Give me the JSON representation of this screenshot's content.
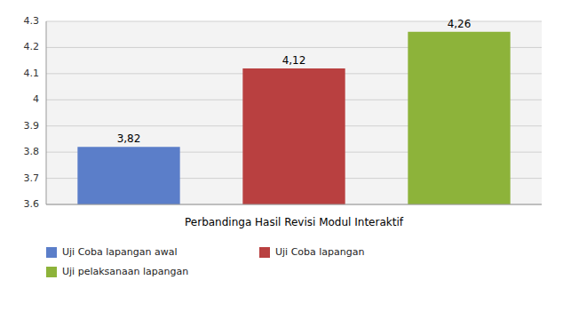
{
  "chart_data": {
    "type": "bar",
    "categories": [
      "Uji Coba lapangan awal",
      "Uji Coba lapangan",
      "Uji pelaksanaan lapangan"
    ],
    "values": [
      3.82,
      4.12,
      4.26
    ],
    "value_labels": [
      "3,82",
      "4,12",
      "4,26"
    ],
    "colors": [
      "#5B7EC9",
      "#B94040",
      "#8DB33A"
    ],
    "xlabel": "Perbandinga Hasil Revisi Modul Interaktif",
    "ylim": [
      3.6,
      4.3
    ],
    "yticks": [
      3.6,
      3.7,
      3.8,
      3.9,
      4.0,
      4.1,
      4.2,
      4.3
    ],
    "grid": true,
    "data_labels": true,
    "tick_labels": "y",
    "legend": "bottom"
  }
}
